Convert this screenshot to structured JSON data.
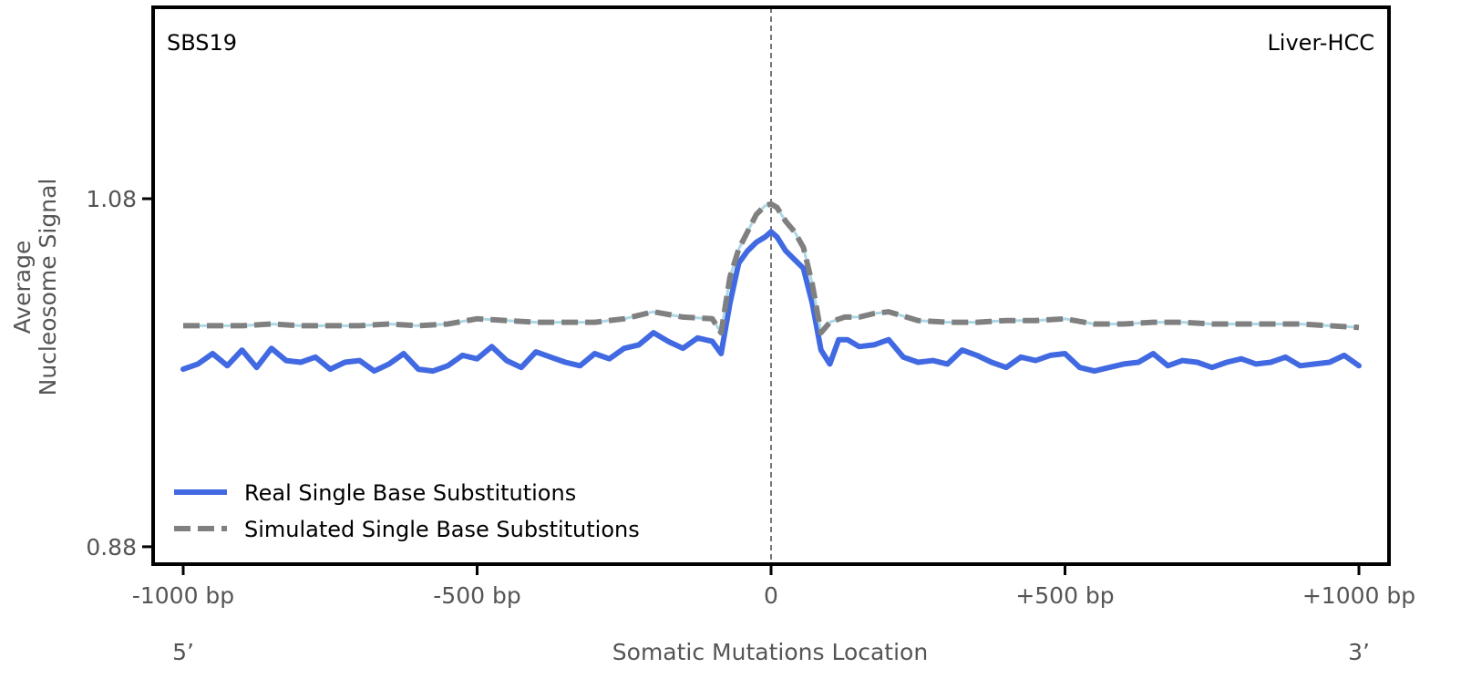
{
  "chart_data": {
    "type": "line",
    "signature_label": "SBS19",
    "tissue_label": "Liver-HCC",
    "xlabel": "Somatic Mutations Location",
    "ylabel_line1": "Average",
    "ylabel_line2": "Nucleosome Signal",
    "five_prime_label": "5’",
    "three_prime_label": "3’",
    "xlim": [
      -1000,
      1000
    ],
    "ylim": [
      0.87,
      1.19
    ],
    "x_ticks": [
      {
        "value": -1000,
        "label": "-1000 bp"
      },
      {
        "value": -500,
        "label": "-500 bp"
      },
      {
        "value": 0,
        "label": "0"
      },
      {
        "value": 500,
        "label": "+500 bp"
      },
      {
        "value": 1000,
        "label": "+1000 bp"
      }
    ],
    "y_ticks": [
      {
        "value": 0.88,
        "label": "0.88"
      },
      {
        "value": 1.08,
        "label": "1.08"
      }
    ],
    "vline_x": 0,
    "legend_position": "lower-left",
    "series": [
      {
        "name": "Real Single Base Substitutions",
        "color": "#4169e1",
        "style": "solid",
        "points": [
          [
            -1000,
            0.982
          ],
          [
            -975,
            0.985
          ],
          [
            -950,
            0.991
          ],
          [
            -925,
            0.984
          ],
          [
            -900,
            0.993
          ],
          [
            -875,
            0.983
          ],
          [
            -850,
            0.994
          ],
          [
            -825,
            0.987
          ],
          [
            -800,
            0.986
          ],
          [
            -775,
            0.989
          ],
          [
            -750,
            0.982
          ],
          [
            -725,
            0.986
          ],
          [
            -700,
            0.987
          ],
          [
            -675,
            0.981
          ],
          [
            -650,
            0.985
          ],
          [
            -625,
            0.991
          ],
          [
            -600,
            0.982
          ],
          [
            -575,
            0.981
          ],
          [
            -550,
            0.984
          ],
          [
            -525,
            0.99
          ],
          [
            -500,
            0.988
          ],
          [
            -475,
            0.995
          ],
          [
            -450,
            0.987
          ],
          [
            -425,
            0.983
          ],
          [
            -400,
            0.992
          ],
          [
            -375,
            0.989
          ],
          [
            -350,
            0.986
          ],
          [
            -325,
            0.984
          ],
          [
            -300,
            0.991
          ],
          [
            -275,
            0.988
          ],
          [
            -250,
            0.994
          ],
          [
            -225,
            0.996
          ],
          [
            -200,
            1.003
          ],
          [
            -175,
            0.998
          ],
          [
            -150,
            0.994
          ],
          [
            -125,
            1.0
          ],
          [
            -100,
            0.998
          ],
          [
            -85,
            0.991
          ],
          [
            -70,
            1.02
          ],
          [
            -55,
            1.043
          ],
          [
            -40,
            1.05
          ],
          [
            -25,
            1.055
          ],
          [
            -10,
            1.058
          ],
          [
            0,
            1.061
          ],
          [
            10,
            1.058
          ],
          [
            25,
            1.05
          ],
          [
            40,
            1.045
          ],
          [
            55,
            1.04
          ],
          [
            70,
            1.02
          ],
          [
            85,
            0.993
          ],
          [
            100,
            0.985
          ],
          [
            115,
            0.999
          ],
          [
            130,
            0.999
          ],
          [
            150,
            0.995
          ],
          [
            175,
            0.996
          ],
          [
            200,
            0.999
          ],
          [
            225,
            0.989
          ],
          [
            250,
            0.986
          ],
          [
            275,
            0.987
          ],
          [
            300,
            0.985
          ],
          [
            325,
            0.993
          ],
          [
            350,
            0.99
          ],
          [
            375,
            0.986
          ],
          [
            400,
            0.983
          ],
          [
            425,
            0.989
          ],
          [
            450,
            0.987
          ],
          [
            475,
            0.99
          ],
          [
            500,
            0.991
          ],
          [
            525,
            0.983
          ],
          [
            550,
            0.981
          ],
          [
            575,
            0.983
          ],
          [
            600,
            0.985
          ],
          [
            625,
            0.986
          ],
          [
            650,
            0.991
          ],
          [
            675,
            0.984
          ],
          [
            700,
            0.987
          ],
          [
            725,
            0.986
          ],
          [
            750,
            0.983
          ],
          [
            775,
            0.986
          ],
          [
            800,
            0.988
          ],
          [
            825,
            0.985
          ],
          [
            850,
            0.986
          ],
          [
            875,
            0.989
          ],
          [
            900,
            0.984
          ],
          [
            925,
            0.985
          ],
          [
            950,
            0.986
          ],
          [
            975,
            0.99
          ],
          [
            1000,
            0.984
          ]
        ]
      },
      {
        "name": "Simulated Single Base Substitutions",
        "color": "#808080",
        "style": "dashed",
        "points": [
          [
            -1000,
            1.007
          ],
          [
            -950,
            1.007
          ],
          [
            -900,
            1.007
          ],
          [
            -850,
            1.008
          ],
          [
            -800,
            1.007
          ],
          [
            -750,
            1.007
          ],
          [
            -700,
            1.007
          ],
          [
            -650,
            1.008
          ],
          [
            -600,
            1.007
          ],
          [
            -550,
            1.008
          ],
          [
            -500,
            1.011
          ],
          [
            -450,
            1.01
          ],
          [
            -400,
            1.009
          ],
          [
            -350,
            1.009
          ],
          [
            -300,
            1.009
          ],
          [
            -250,
            1.011
          ],
          [
            -200,
            1.015
          ],
          [
            -150,
            1.012
          ],
          [
            -100,
            1.011
          ],
          [
            -85,
            1.003
          ],
          [
            -70,
            1.035
          ],
          [
            -55,
            1.051
          ],
          [
            -40,
            1.061
          ],
          [
            -25,
            1.071
          ],
          [
            -10,
            1.076
          ],
          [
            0,
            1.077
          ],
          [
            10,
            1.075
          ],
          [
            25,
            1.067
          ],
          [
            40,
            1.061
          ],
          [
            55,
            1.052
          ],
          [
            70,
            1.031
          ],
          [
            85,
            1.003
          ],
          [
            100,
            1.009
          ],
          [
            125,
            1.012
          ],
          [
            150,
            1.012
          ],
          [
            175,
            1.014
          ],
          [
            200,
            1.015
          ],
          [
            250,
            1.01
          ],
          [
            300,
            1.009
          ],
          [
            350,
            1.009
          ],
          [
            400,
            1.01
          ],
          [
            450,
            1.01
          ],
          [
            500,
            1.011
          ],
          [
            550,
            1.008
          ],
          [
            600,
            1.008
          ],
          [
            650,
            1.009
          ],
          [
            700,
            1.009
          ],
          [
            750,
            1.008
          ],
          [
            800,
            1.008
          ],
          [
            850,
            1.008
          ],
          [
            900,
            1.008
          ],
          [
            950,
            1.007
          ],
          [
            1000,
            1.006
          ]
        ]
      }
    ]
  }
}
